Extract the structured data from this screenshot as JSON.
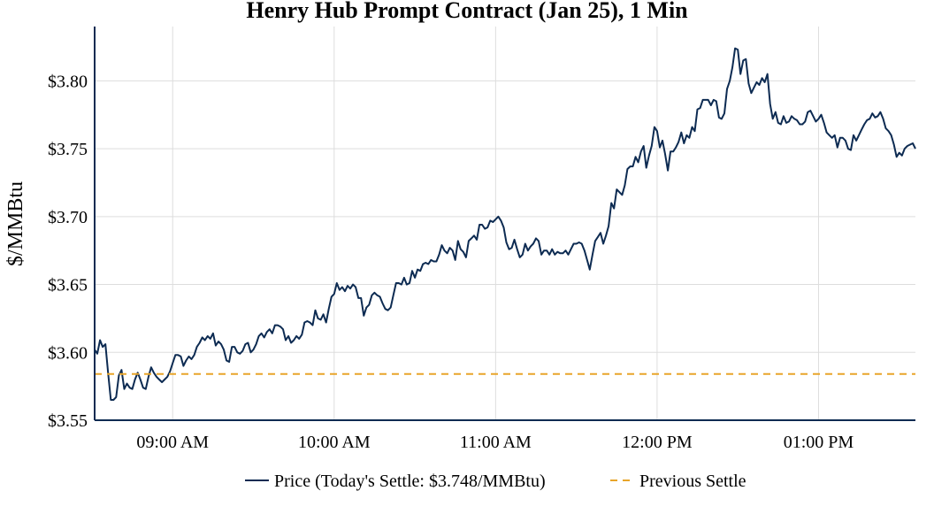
{
  "chart_data": {
    "type": "line",
    "title": "Henry Hub Prompt Contract (Jan 25), 1 Min",
    "xlabel": "",
    "ylabel": "$/MMBtu",
    "x_range": [
      "08:31",
      "13:36"
    ],
    "ylim": [
      3.55,
      3.84
    ],
    "y_ticks": [
      3.55,
      3.6,
      3.65,
      3.7,
      3.75,
      3.8
    ],
    "y_tick_labels": [
      "$3.55",
      "$3.60",
      "$3.65",
      "$3.70",
      "$3.75",
      "$3.80"
    ],
    "x_ticks": [
      "09:00",
      "10:00",
      "11:00",
      "12:00",
      "13:00"
    ],
    "x_tick_labels": [
      "09:00 AM",
      "10:00 AM",
      "11:00 AM",
      "12:00 PM",
      "01:00 PM"
    ],
    "grid": true,
    "legend_position": "bottom-center",
    "colors": {
      "price": "#0d2b52",
      "previous_settle": "#e8a52a",
      "grid": "#dddddd",
      "axis": "#0d2b52"
    },
    "series": [
      {
        "name": "Price (Today's Settle: $3.748/MMBtu)",
        "style": "solid",
        "x": [
          "08:31",
          "08:32",
          "08:33",
          "08:34",
          "08:35",
          "08:36",
          "08:37",
          "08:38",
          "08:39",
          "08:40",
          "08:41",
          "08:42",
          "08:43",
          "08:44",
          "08:45",
          "08:46",
          "08:47",
          "08:48",
          "08:49",
          "08:50",
          "08:51",
          "08:52",
          "08:53",
          "08:54",
          "08:55",
          "08:56",
          "08:57",
          "08:58",
          "08:59",
          "09:00",
          "09:01",
          "09:02",
          "09:03",
          "09:04",
          "09:05",
          "09:06",
          "09:07",
          "09:08",
          "09:09",
          "09:10",
          "09:11",
          "09:12",
          "09:13",
          "09:14",
          "09:15",
          "09:16",
          "09:17",
          "09:18",
          "09:19",
          "09:20",
          "09:21",
          "09:22",
          "09:23",
          "09:24",
          "09:25",
          "09:26",
          "09:27",
          "09:28",
          "09:29",
          "09:30",
          "09:31",
          "09:32",
          "09:33",
          "09:34",
          "09:35",
          "09:36",
          "09:37",
          "09:38",
          "09:39",
          "09:40",
          "09:41",
          "09:42",
          "09:43",
          "09:44",
          "09:45",
          "09:46",
          "09:47",
          "09:48",
          "09:49",
          "09:50",
          "09:51",
          "09:52",
          "09:53",
          "09:54",
          "09:55",
          "09:56",
          "09:57",
          "09:58",
          "09:59",
          "10:00",
          "10:01",
          "10:02",
          "10:03",
          "10:04",
          "10:05",
          "10:06",
          "10:07",
          "10:08",
          "10:09",
          "10:10",
          "10:11",
          "10:12",
          "10:13",
          "10:14",
          "10:15",
          "10:16",
          "10:17",
          "10:18",
          "10:19",
          "10:20",
          "10:21",
          "10:22",
          "10:23",
          "10:24",
          "10:25",
          "10:26",
          "10:27",
          "10:28",
          "10:29",
          "10:30",
          "10:31",
          "10:32",
          "10:33",
          "10:34",
          "10:35",
          "10:36",
          "10:37",
          "10:38",
          "10:39",
          "10:40",
          "10:41",
          "10:42",
          "10:43",
          "10:44",
          "10:45",
          "10:46",
          "10:47",
          "10:48",
          "10:49",
          "10:50",
          "10:51",
          "10:52",
          "10:53",
          "10:54",
          "10:55",
          "10:56",
          "10:57",
          "10:58",
          "10:59",
          "11:00",
          "11:01",
          "11:02",
          "11:03",
          "11:04",
          "11:05",
          "11:06",
          "11:07",
          "11:08",
          "11:09",
          "11:10",
          "11:11",
          "11:12",
          "11:13",
          "11:14",
          "11:15",
          "11:16",
          "11:17",
          "11:18",
          "11:19",
          "11:20",
          "11:21",
          "11:22",
          "11:23",
          "11:24",
          "11:25",
          "11:26",
          "11:27",
          "11:28",
          "11:29",
          "11:30",
          "11:31",
          "11:32",
          "11:33",
          "11:34",
          "11:35",
          "11:36",
          "11:37",
          "11:38",
          "11:39",
          "11:40",
          "11:41",
          "11:42",
          "11:43",
          "11:44",
          "11:45",
          "11:46",
          "11:47",
          "11:48",
          "11:49",
          "11:50",
          "11:51",
          "11:52",
          "11:53",
          "11:54",
          "11:55",
          "11:56",
          "11:57",
          "11:58",
          "11:59",
          "12:00",
          "12:01",
          "12:02",
          "12:03",
          "12:04",
          "12:05",
          "12:06",
          "12:07",
          "12:08",
          "12:09",
          "12:10",
          "12:11",
          "12:12",
          "12:13",
          "12:14",
          "12:15",
          "12:16",
          "12:17",
          "12:18",
          "12:19",
          "12:20",
          "12:21",
          "12:22",
          "12:23",
          "12:24",
          "12:25",
          "12:26",
          "12:27",
          "12:28",
          "12:29",
          "12:30",
          "12:31",
          "12:32",
          "12:33",
          "12:34",
          "12:35",
          "12:36",
          "12:37",
          "12:38",
          "12:39",
          "12:40",
          "12:41",
          "12:42",
          "12:43",
          "12:44",
          "12:45",
          "12:46",
          "12:47",
          "12:48",
          "12:49",
          "12:50",
          "12:51",
          "12:52",
          "12:53",
          "12:54",
          "12:55",
          "12:56",
          "12:57",
          "12:58",
          "12:59",
          "13:00",
          "13:01",
          "13:02",
          "13:03",
          "13:04",
          "13:05",
          "13:06",
          "13:07",
          "13:08",
          "13:09",
          "13:10",
          "13:11",
          "13:12",
          "13:13",
          "13:14",
          "13:15",
          "13:16",
          "13:17",
          "13:18",
          "13:19",
          "13:20",
          "13:21",
          "13:22",
          "13:23",
          "13:24",
          "13:25",
          "13:26",
          "13:27",
          "13:28",
          "13:29",
          "13:30",
          "13:31",
          "13:32",
          "13:33",
          "13:34",
          "13:35",
          "13:36"
        ],
        "y": [
          3.602,
          3.599,
          3.609,
          3.604,
          3.606,
          3.585,
          3.565,
          3.565,
          3.567,
          3.583,
          3.587,
          3.573,
          3.577,
          3.574,
          3.573,
          3.58,
          3.585,
          3.58,
          3.574,
          3.573,
          3.582,
          3.589,
          3.585,
          3.582,
          3.58,
          3.578,
          3.58,
          3.582,
          3.586,
          3.592,
          3.598,
          3.598,
          3.597,
          3.59,
          3.594,
          3.597,
          3.595,
          3.598,
          3.604,
          3.607,
          3.611,
          3.609,
          3.612,
          3.61,
          3.614,
          3.605,
          3.608,
          3.606,
          3.602,
          3.594,
          3.593,
          3.604,
          3.604,
          3.6,
          3.599,
          3.601,
          3.606,
          3.607,
          3.6,
          3.602,
          3.606,
          3.612,
          3.614,
          3.611,
          3.615,
          3.617,
          3.614,
          3.62,
          3.62,
          3.619,
          3.617,
          3.609,
          3.612,
          3.607,
          3.609,
          3.612,
          3.61,
          3.613,
          3.622,
          3.623,
          3.622,
          3.62,
          3.631,
          3.625,
          3.624,
          3.628,
          3.622,
          3.632,
          3.641,
          3.643,
          3.651,
          3.646,
          3.648,
          3.645,
          3.649,
          3.647,
          3.65,
          3.648,
          3.64,
          3.64,
          3.627,
          3.633,
          3.635,
          3.642,
          3.644,
          3.642,
          3.641,
          3.636,
          3.632,
          3.631,
          3.633,
          3.642,
          3.651,
          3.651,
          3.65,
          3.655,
          3.65,
          3.651,
          3.66,
          3.655,
          3.661,
          3.66,
          3.665,
          3.666,
          3.665,
          3.668,
          3.667,
          3.667,
          3.672,
          3.679,
          3.675,
          3.673,
          3.677,
          3.675,
          3.668,
          3.682,
          3.676,
          3.674,
          3.67,
          3.682,
          3.684,
          3.686,
          3.683,
          3.694,
          3.694,
          3.691,
          3.692,
          3.697,
          3.696,
          3.698,
          3.7,
          3.697,
          3.692,
          3.681,
          3.676,
          3.677,
          3.683,
          3.676,
          3.67,
          3.672,
          3.68,
          3.675,
          3.678,
          3.68,
          3.684,
          3.682,
          3.672,
          3.675,
          3.675,
          3.672,
          3.676,
          3.672,
          3.674,
          3.673,
          3.673,
          3.675,
          3.672,
          3.676,
          3.68,
          3.68,
          3.681,
          3.68,
          3.675,
          3.668,
          3.661,
          3.672,
          3.682,
          3.685,
          3.688,
          3.68,
          3.686,
          3.693,
          3.71,
          3.706,
          3.72,
          3.718,
          3.716,
          3.723,
          3.735,
          3.737,
          3.737,
          3.744,
          3.74,
          3.748,
          3.752,
          3.736,
          3.745,
          3.752,
          3.766,
          3.763,
          3.751,
          3.756,
          3.746,
          3.734,
          3.748,
          3.748,
          3.751,
          3.755,
          3.762,
          3.754,
          3.76,
          3.758,
          3.766,
          3.763,
          3.779,
          3.78,
          3.786,
          3.786,
          3.786,
          3.782,
          3.786,
          3.785,
          3.773,
          3.772,
          3.776,
          3.794,
          3.8,
          3.81,
          3.824,
          3.823,
          3.805,
          3.815,
          3.816,
          3.798,
          3.791,
          3.795,
          3.799,
          3.797,
          3.802,
          3.799,
          3.805,
          3.783,
          3.772,
          3.777,
          3.769,
          3.768,
          3.774,
          3.769,
          3.77,
          3.774,
          3.772,
          3.771,
          3.768,
          3.768,
          3.77,
          3.777,
          3.778,
          3.774,
          3.77,
          3.772,
          3.775,
          3.769,
          3.762,
          3.76,
          3.758,
          3.76,
          3.751,
          3.758,
          3.758,
          3.756,
          3.75,
          3.749,
          3.76,
          3.756,
          3.76,
          3.764,
          3.768,
          3.771,
          3.772,
          3.776,
          3.773,
          3.774,
          3.777,
          3.772,
          3.765,
          3.763,
          3.76,
          3.753,
          3.744,
          3.747,
          3.745,
          3.75,
          3.752,
          3.753,
          3.754,
          3.75
        ]
      },
      {
        "name": "Previous Settle",
        "style": "dashed",
        "x": [
          "08:31",
          "13:36"
        ],
        "y": [
          3.584,
          3.584
        ]
      }
    ]
  }
}
